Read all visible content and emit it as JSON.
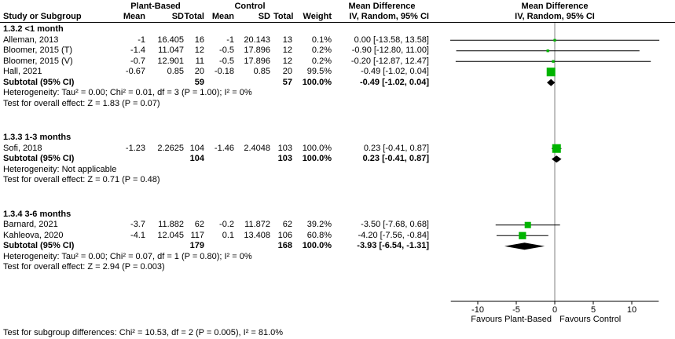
{
  "header": {
    "group1": "Plant-Based",
    "group2": "Control",
    "mean_difference_stats": "Mean Difference",
    "mean_difference_plot": "Mean Difference",
    "study": "Study or Subgroup",
    "mean": "Mean",
    "sd": "SD",
    "total": "Total",
    "weight": "Weight",
    "ci": "IV, Random, 95% CI",
    "ci_plot": "IV, Random, 95% CI"
  },
  "chart_data": {
    "type": "scatter",
    "subtype": "forest-plot",
    "effect_measure": "Mean Difference IV, Random, 95% CI",
    "color_square": "#00B400",
    "color_diamond": "#000000",
    "color_line": "#000000",
    "axis": {
      "ticks": [
        "-10",
        "-5",
        "0",
        "5",
        "10"
      ],
      "tick_values": [
        -10,
        -5,
        0,
        5,
        10
      ],
      "xmin": -15,
      "xmax": 15,
      "favours_left": "Favours Plant-Based",
      "favours_right": "Favours Control"
    },
    "subgroups": [
      {
        "title": "1.3.2 <1 month",
        "studies": [
          {
            "label": "Alleman, 2013",
            "mean1": "-1",
            "sd1": "16.405",
            "n1": "16",
            "mean2": "-1",
            "sd2": "20.143",
            "n2": "13",
            "weight": "0.1%",
            "ci_text": "0.00 [-13.58, 13.58]",
            "est": 0.0,
            "lo": -13.58,
            "hi": 13.58,
            "weight_value": 0.1
          },
          {
            "label": "Bloomer, 2015 (T)",
            "mean1": "-1.4",
            "sd1": "11.047",
            "n1": "12",
            "mean2": "-0.5",
            "sd2": "17.896",
            "n2": "12",
            "weight": "0.2%",
            "ci_text": "-0.90 [-12.80, 11.00]",
            "est": -0.9,
            "lo": -12.8,
            "hi": 11.0,
            "weight_value": 0.2
          },
          {
            "label": "Bloomer, 2015 (V)",
            "mean1": "-0.7",
            "sd1": "12.901",
            "n1": "11",
            "mean2": "-0.5",
            "sd2": "17.896",
            "n2": "12",
            "weight": "0.2%",
            "ci_text": "-0.20 [-12.87, 12.47]",
            "est": -0.2,
            "lo": -12.87,
            "hi": 12.47,
            "weight_value": 0.2
          },
          {
            "label": "Hall, 2021",
            "mean1": "-0.67",
            "sd1": "0.85",
            "n1": "20",
            "mean2": "-0.18",
            "sd2": "0.85",
            "n2": "20",
            "weight": "99.5%",
            "ci_text": "-0.49 [-1.02, 0.04]",
            "est": -0.49,
            "lo": -1.02,
            "hi": 0.04,
            "weight_value": 99.5
          }
        ],
        "subtotal": {
          "label": "Subtotal (95% CI)",
          "n1": "59",
          "n2": "57",
          "weight": "100.0%",
          "ci_text": "-0.49 [-1.02, 0.04]",
          "est": -0.49,
          "lo": -1.02,
          "hi": 0.04
        },
        "heterogeneity": "Heterogeneity: Tau² = 0.00; Chi² = 0.01, df = 3 (P = 1.00); I² = 0%",
        "overall_effect": "Test for overall effect: Z = 1.83 (P = 0.07)"
      },
      {
        "title": "1.3.3 1-3 months",
        "studies": [
          {
            "label": "Sofi, 2018",
            "mean1": "-1.23",
            "sd1": "2.2625",
            "n1": "104",
            "mean2": "-1.46",
            "sd2": "2.4048",
            "n2": "103",
            "weight": "100.0%",
            "ci_text": "0.23 [-0.41, 0.87]",
            "est": 0.23,
            "lo": -0.41,
            "hi": 0.87,
            "weight_value": 100.0
          }
        ],
        "subtotal": {
          "label": "Subtotal (95% CI)",
          "n1": "104",
          "n2": "103",
          "weight": "100.0%",
          "ci_text": "0.23 [-0.41, 0.87]",
          "est": 0.23,
          "lo": -0.41,
          "hi": 0.87
        },
        "heterogeneity": "Heterogeneity: Not applicable",
        "overall_effect": "Test for overall effect: Z = 0.71 (P = 0.48)"
      },
      {
        "title": "1.3.4 3-6 months",
        "studies": [
          {
            "label": "Barnard, 2021",
            "mean1": "-3.7",
            "sd1": "11.882",
            "n1": "62",
            "mean2": "-0.2",
            "sd2": "11.872",
            "n2": "62",
            "weight": "39.2%",
            "ci_text": "-3.50 [-7.68, 0.68]",
            "est": -3.5,
            "lo": -7.68,
            "hi": 0.68,
            "weight_value": 39.2
          },
          {
            "label": "Kahleova, 2020",
            "mean1": "-4.1",
            "sd1": "12.045",
            "n1": "117",
            "mean2": "0.1",
            "sd2": "13.408",
            "n2": "106",
            "weight": "60.8%",
            "ci_text": "-4.20 [-7.56, -0.84]",
            "est": -4.2,
            "lo": -7.56,
            "hi": -0.84,
            "weight_value": 60.8
          }
        ],
        "subtotal": {
          "label": "Subtotal (95% CI)",
          "n1": "179",
          "n2": "168",
          "weight": "100.0%",
          "ci_text": "-3.93 [-6.54, -1.31]",
          "est": -3.93,
          "lo": -6.54,
          "hi": -1.31
        },
        "heterogeneity": "Heterogeneity: Tau² = 0.00; Chi² = 0.07, df = 1 (P = 0.80); I² = 0%",
        "overall_effect": "Test for overall effect: Z = 2.94 (P = 0.003)"
      }
    ],
    "footer": "Test for subgroup differences: Chi² = 10.53, df = 2 (P = 0.005), I² = 81.0%"
  }
}
